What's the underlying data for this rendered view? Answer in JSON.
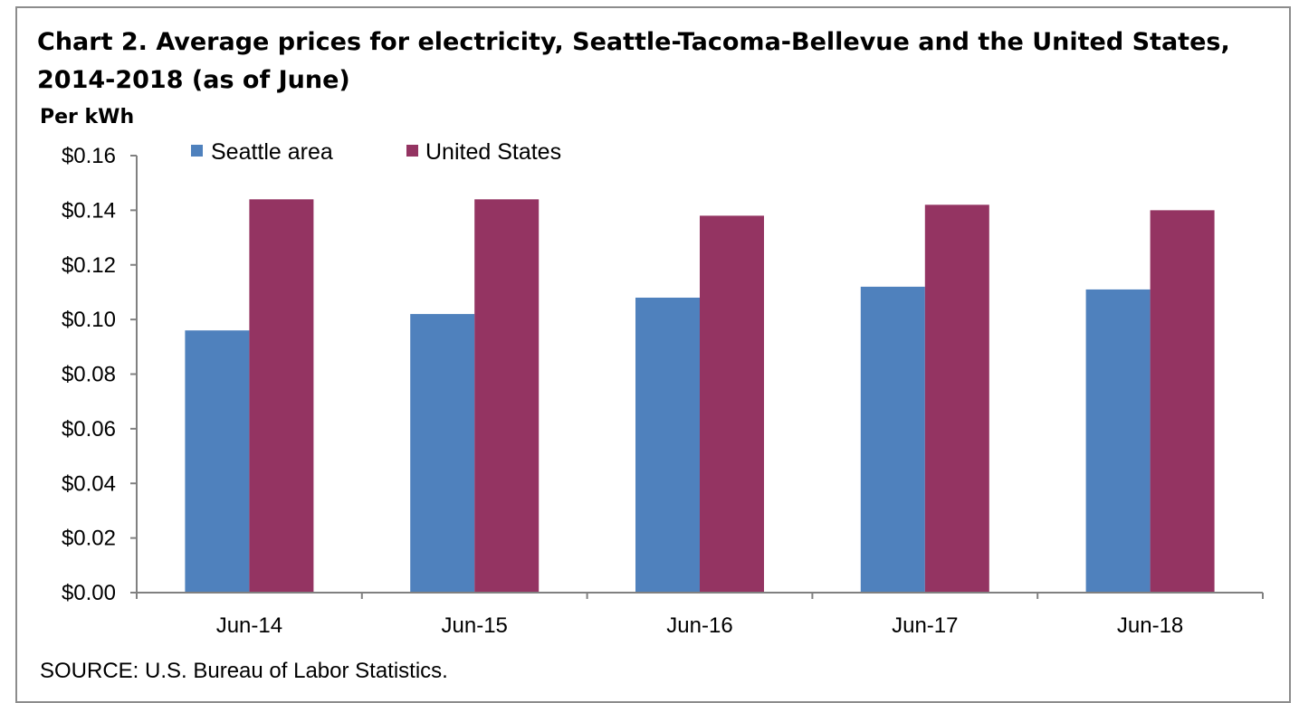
{
  "title": "Chart 2. Average prices for electricity, Seattle-Tacoma-Bellevue and the United States, 2014-2018  (as of June)",
  "source": "SOURCE: U.S. Bureau of Labor Statistics.",
  "colors": {
    "seattle": "#4f81bd",
    "united_states": "#943462",
    "axis": "#808080"
  },
  "chart_data": {
    "type": "bar",
    "title": "Chart 2. Average prices for electricity, Seattle-Tacoma-Bellevue and the United States, 2014-2018  (as of June)",
    "xlabel": "",
    "ylabel": "Per kWh",
    "categories": [
      "Jun-14",
      "Jun-15",
      "Jun-16",
      "Jun-17",
      "Jun-18"
    ],
    "series": [
      {
        "name": "Seattle area",
        "values": [
          0.096,
          0.102,
          0.108,
          0.112,
          0.111
        ]
      },
      {
        "name": "United States",
        "values": [
          0.144,
          0.144,
          0.138,
          0.142,
          0.14
        ]
      }
    ],
    "ylim": [
      0,
      0.16
    ],
    "yticks": [
      "$0.00",
      "$0.02",
      "$0.04",
      "$0.06",
      "$0.08",
      "$0.10",
      "$0.12",
      "$0.14",
      "$0.16"
    ],
    "grid": false,
    "legend": "top-left"
  }
}
